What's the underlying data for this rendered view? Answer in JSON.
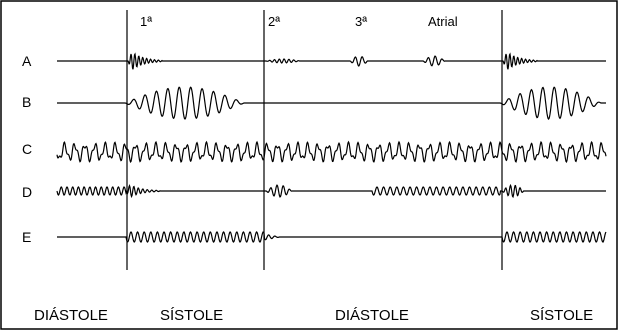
{
  "sound_labels": [
    "1ª",
    "2ª",
    "3ª",
    "Atrial"
  ],
  "rows": [
    "A",
    "B",
    "C",
    "D",
    "E"
  ],
  "phase_labels": [
    "DIÁSTOLE",
    "SÍSTOLE",
    "DIÁSTOLE",
    "SÍSTOLE"
  ],
  "colors": {
    "trace": "#000000",
    "frame": "#000000",
    "background": "#ffffff"
  }
}
